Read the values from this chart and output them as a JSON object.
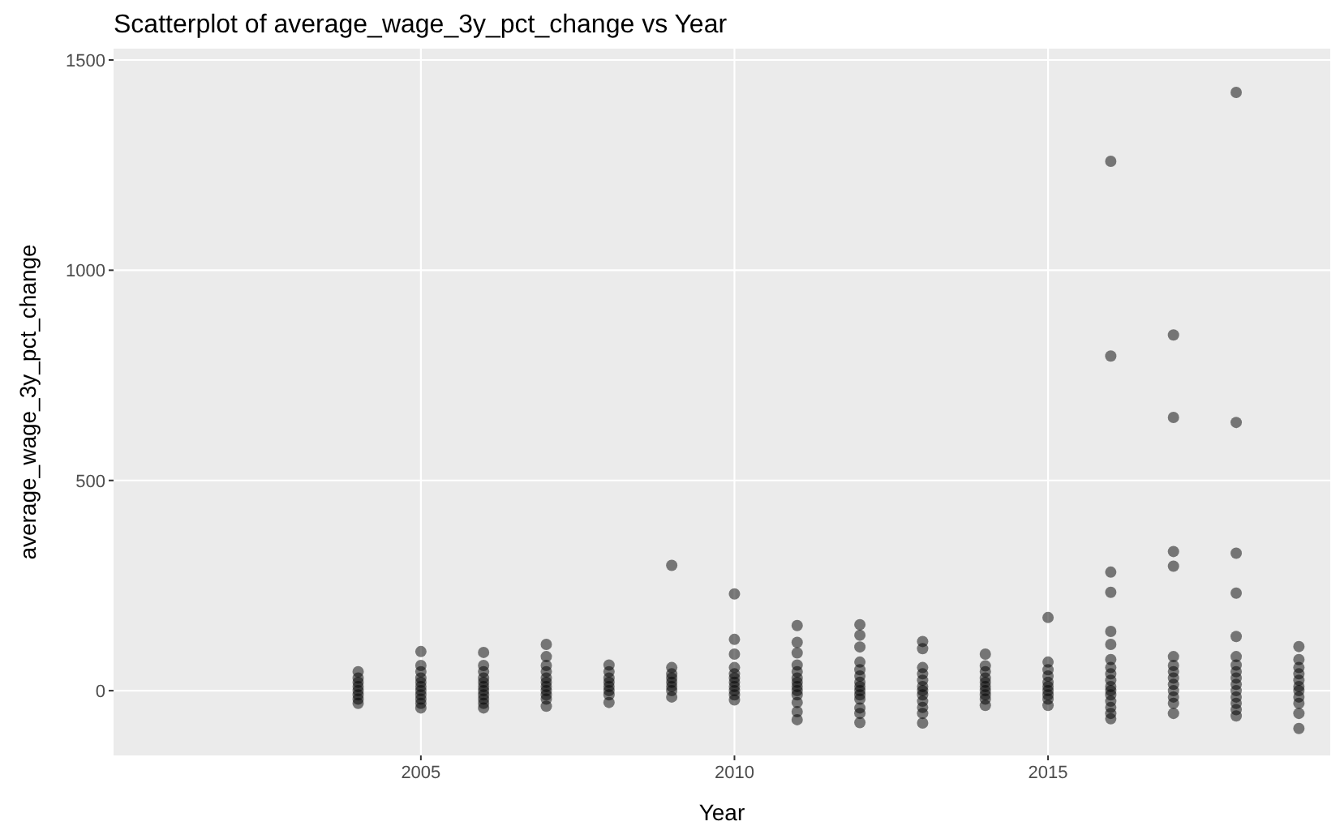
{
  "chart_data": {
    "type": "scatter",
    "title": "Scatterplot of average_wage_3y_pct_change vs Year",
    "xlabel": "Year",
    "ylabel": "average_wage_3y_pct_change",
    "xlim": [
      2000.1,
      2019.5
    ],
    "ylim": [
      -154,
      1527
    ],
    "xticks": [
      2005,
      2010,
      2015
    ],
    "yticks": [
      0,
      500,
      1000,
      1500
    ],
    "grid": true,
    "marker": "circle",
    "series": [
      {
        "color": "#000000",
        "x": [
          2004,
          2004,
          2004,
          2004,
          2004,
          2004,
          2004,
          2004,
          2005,
          2005,
          2005,
          2005,
          2005,
          2005,
          2005,
          2005,
          2005,
          2005,
          2005,
          2006,
          2006,
          2006,
          2006,
          2006,
          2006,
          2006,
          2006,
          2006,
          2006,
          2006,
          2007,
          2007,
          2007,
          2007,
          2007,
          2007,
          2007,
          2007,
          2007,
          2007,
          2007,
          2008,
          2008,
          2008,
          2008,
          2008,
          2008,
          2008,
          2008,
          2009,
          2009,
          2009,
          2009,
          2009,
          2009,
          2009,
          2009,
          2010,
          2010,
          2010,
          2010,
          2010,
          2010,
          2010,
          2010,
          2010,
          2010,
          2010,
          2011,
          2011,
          2011,
          2011,
          2011,
          2011,
          2011,
          2011,
          2011,
          2011,
          2011,
          2011,
          2011,
          2012,
          2012,
          2012,
          2012,
          2012,
          2012,
          2012,
          2012,
          2012,
          2012,
          2012,
          2012,
          2012,
          2012,
          2013,
          2013,
          2013,
          2013,
          2013,
          2013,
          2013,
          2013,
          2013,
          2013,
          2013,
          2013,
          2014,
          2014,
          2014,
          2014,
          2014,
          2014,
          2014,
          2014,
          2014,
          2014,
          2015,
          2015,
          2015,
          2015,
          2015,
          2015,
          2015,
          2015,
          2015,
          2015,
          2016,
          2016,
          2016,
          2016,
          2016,
          2016,
          2016,
          2016,
          2016,
          2016,
          2016,
          2016,
          2016,
          2016,
          2016,
          2016,
          2016,
          2017,
          2017,
          2017,
          2017,
          2017,
          2017,
          2017,
          2017,
          2017,
          2017,
          2017,
          2017,
          2017,
          2018,
          2018,
          2018,
          2018,
          2018,
          2018,
          2018,
          2018,
          2018,
          2018,
          2018,
          2018,
          2018,
          2018,
          2018,
          2019,
          2019,
          2019,
          2019,
          2019,
          2019,
          2019,
          2019,
          2019,
          2019,
          2019
        ],
        "values": [
          45,
          30,
          20,
          10,
          0,
          -10,
          -20,
          -30,
          93,
          60,
          45,
          30,
          20,
          10,
          0,
          -10,
          -20,
          -30,
          -41,
          91,
          60,
          45,
          30,
          20,
          10,
          0,
          -10,
          -20,
          -30,
          -41,
          110,
          81,
          60,
          45,
          30,
          20,
          10,
          0,
          -10,
          -20,
          -37,
          61,
          45,
          30,
          20,
          10,
          0,
          -10,
          -28,
          298,
          55,
          40,
          30,
          20,
          10,
          0,
          -15,
          230,
          122,
          87,
          55,
          40,
          30,
          20,
          10,
          0,
          -10,
          -22,
          155,
          115,
          90,
          61,
          45,
          30,
          20,
          10,
          0,
          -10,
          -28,
          -50,
          -69,
          157,
          132,
          104,
          68,
          50,
          35,
          20,
          10,
          0,
          -10,
          -20,
          -41,
          -54,
          -76,
          117,
          100,
          55,
          40,
          25,
          10,
          0,
          -10,
          -25,
          -40,
          -54,
          -77,
          87,
          59,
          45,
          30,
          20,
          10,
          0,
          -10,
          -20,
          -35,
          174,
          68,
          50,
          35,
          20,
          10,
          0,
          -10,
          -20,
          -35,
          1259,
          796,
          282,
          234,
          141,
          110,
          74,
          55,
          40,
          25,
          10,
          0,
          -10,
          -25,
          -40,
          -54,
          -67,
          846,
          650,
          331,
          296,
          81,
          60,
          45,
          30,
          15,
          0,
          -15,
          -30,
          -54,
          1423,
          638,
          327,
          232,
          129,
          81,
          61,
          45,
          30,
          15,
          0,
          -15,
          -30,
          -45,
          -60,
          105,
          74,
          55,
          40,
          25,
          10,
          0,
          -15,
          -30,
          -54,
          -90
        ]
      }
    ]
  }
}
